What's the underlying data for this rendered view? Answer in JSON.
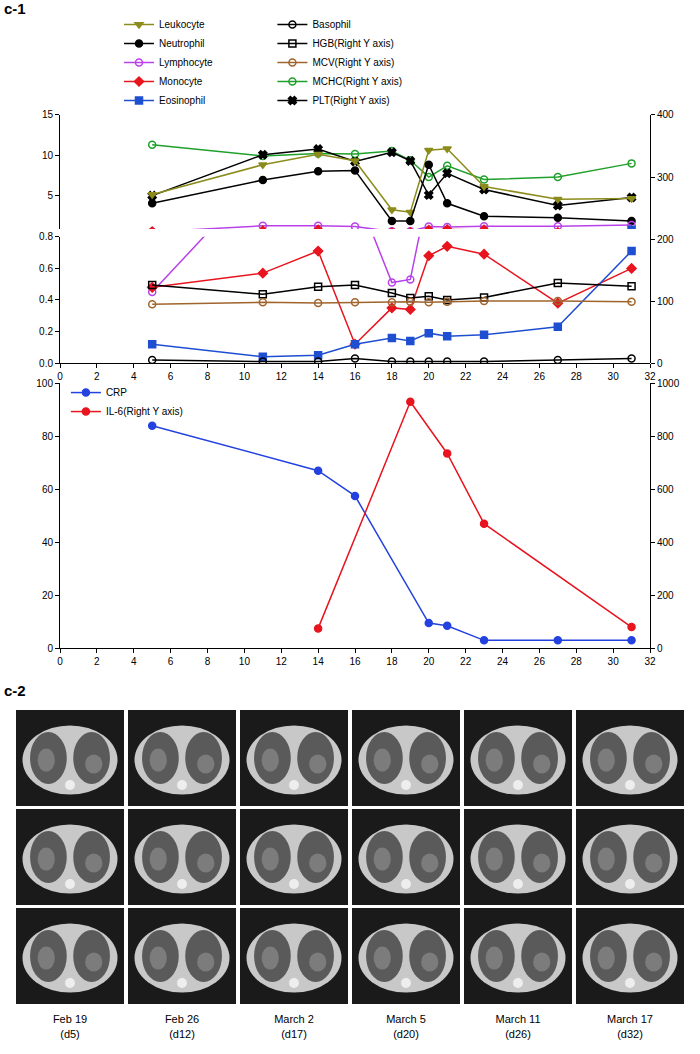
{
  "panel_labels": [
    "c-1",
    "c-2"
  ],
  "chart_data": [
    {
      "type": "line",
      "x": [
        5,
        11,
        14,
        16,
        18,
        19,
        20,
        21,
        23,
        27,
        31
      ],
      "xlim": [
        0,
        32
      ],
      "xticks": [
        0,
        2,
        4,
        6,
        8,
        10,
        12,
        14,
        16,
        18,
        20,
        22,
        24,
        26,
        28,
        30,
        32
      ],
      "ylim": [
        0,
        15
      ],
      "ybreak": 0.8,
      "yticks": [
        {
          "value": 0,
          "label": "0.0"
        },
        0.2,
        0.4,
        0.6,
        0.8,
        5,
        10,
        15
      ],
      "y2lim": [
        0,
        400
      ],
      "y2ticks": [
        0,
        100,
        200,
        300,
        400
      ],
      "grid": false,
      "legend": "top left",
      "series": [
        {
          "name": "Leukocyte",
          "color": "#8c8c1c",
          "marker": "triangle-down",
          "values": [
            5.1,
            8.8,
            10.1,
            9.3,
            3.2,
            2.9,
            10.6,
            10.8,
            6.1,
            4.5,
            4.6
          ]
        },
        {
          "name": "Neutrophil",
          "color": "#000000",
          "marker": "circle",
          "values": [
            4.0,
            6.9,
            8.0,
            8.1,
            1.8,
            1.8,
            8.8,
            4.0,
            2.4,
            2.2,
            1.8
          ]
        },
        {
          "name": "Lymphocyte",
          "color": "#b941e8",
          "marker": "circle-open",
          "values": [
            0.45,
            1.2,
            1.2,
            1.1,
            0.51,
            0.53,
            1.1,
            1.05,
            1.15,
            1.15,
            1.3
          ]
        },
        {
          "name": "Monocyte",
          "color": "#e8141e",
          "marker": "diamond",
          "values": [
            0.48,
            0.57,
            0.71,
            0.12,
            0.35,
            0.34,
            0.68,
            0.74,
            0.69,
            0.38,
            0.6
          ]
        },
        {
          "name": "Eosinophil",
          "color": "#1f4fd1",
          "marker": "square",
          "values": [
            0.12,
            0.04,
            0.05,
            0.12,
            0.16,
            0.14,
            0.19,
            0.17,
            0.18,
            0.23,
            0.71
          ]
        },
        {
          "name": "Basophil",
          "color": "#000000",
          "marker": "circle-open",
          "values": [
            0.02,
            0.01,
            0.01,
            0.03,
            0.01,
            0.01,
            0.01,
            0.01,
            0.01,
            0.02,
            0.03
          ]
        },
        {
          "name": "HGB(Right Y axis)",
          "color": "#000000",
          "marker": "square-open",
          "axis": "y2",
          "values": [
            126,
            111,
            123,
            126,
            113,
            105,
            108,
            102,
            106,
            129,
            124
          ]
        },
        {
          "name": "MCV(Right Y axis)",
          "color": "#a0642d",
          "marker": "circle-open",
          "axis": "y2",
          "values": [
            95,
            98,
            97,
            98,
            98,
            99,
            98,
            99,
            100,
            100,
            99
          ]
        },
        {
          "name": "MCHC(Right Y axis)",
          "color": "#1fa02a",
          "marker": "circle-open",
          "axis": "y2",
          "values": [
            352,
            334,
            338,
            337,
            342,
            327,
            300,
            318,
            296,
            300,
            322
          ]
        },
        {
          "name": "PLT(Right Y axis)",
          "color": "#000000",
          "marker": "x",
          "axis": "y2",
          "values": [
            270,
            336,
            345,
            325,
            340,
            326,
            271,
            306,
            280,
            254,
            267
          ]
        }
      ]
    },
    {
      "type": "line",
      "xlim": [
        0,
        32
      ],
      "xticks": [
        0,
        2,
        4,
        6,
        8,
        10,
        12,
        14,
        16,
        18,
        20,
        22,
        24,
        26,
        28,
        30,
        32
      ],
      "ylim": [
        0,
        100
      ],
      "yticks": [
        0,
        20,
        40,
        60,
        80,
        100
      ],
      "y2lim": [
        0,
        1000
      ],
      "y2ticks": [
        0,
        200,
        400,
        600,
        800,
        1000
      ],
      "grid": false,
      "legend": "top left",
      "series": [
        {
          "name": "CRP",
          "color": "#2342e0",
          "marker": "circle",
          "x": [
            5,
            14,
            16,
            20,
            21,
            23,
            27,
            31
          ],
          "values": [
            84,
            67,
            57.5,
            9.5,
            8.5,
            3,
            3,
            3
          ]
        },
        {
          "name": "IL-6(Right Y axis)",
          "color": "#e8141e",
          "marker": "circle",
          "axis": "y2",
          "x": [
            14,
            19,
            21,
            23,
            31
          ],
          "values": [
            75,
            930,
            735,
            470,
            80
          ]
        }
      ]
    }
  ],
  "ct_scans": {
    "views_per_date": 3,
    "dates": [
      {
        "date": "Feb 19",
        "day": "(d5)"
      },
      {
        "date": "Feb 26",
        "day": "(d12)"
      },
      {
        "date": "March 2",
        "day": "(d17)"
      },
      {
        "date": "March 5",
        "day": "(d20)"
      },
      {
        "date": "March 11",
        "day": "(d26)"
      },
      {
        "date": "March 17",
        "day": "(d32)"
      }
    ]
  }
}
